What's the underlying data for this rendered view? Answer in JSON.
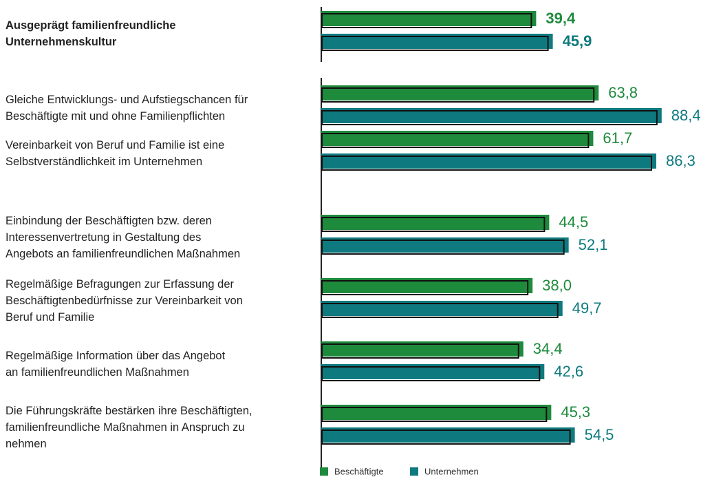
{
  "chart_data": {
    "type": "bar",
    "orientation": "horizontal",
    "categories": [
      "Ausgeprägt familienfreundliche\nUnternehmenskultur",
      "Gleiche Entwicklungs- und Aufstiegschancen für\nBeschäftigte mit und ohne Familienpflichten",
      "Vereinbarkeit von Beruf und Familie ist eine\nSelbstverständlichkeit im Unternehmen",
      "Einbindung der Beschäftigten bzw. deren\nInteressenvertretung in Gestaltung des\nAngebots an familienfreundlichen Maßnahmen",
      "Regelmäßige Befragungen zur Erfassung der\nBeschäftigtenbedürfnisse zur Vereinbarkeit von\nBeruf und Familie",
      "Regelmäßige Information über das Angebot\nan familienfreundlichen Maßnahmen",
      "Die Führungskräfte bestärken ihre Beschäftigten,\nfamilienfreundliche Maßnahmen in Anspruch zu\nnehmen"
    ],
    "series": [
      {
        "name": "Beschäftigte",
        "color": "#1e8a3c",
        "values": [
          39.4,
          63.8,
          61.7,
          44.5,
          38.0,
          34.4,
          45.3
        ],
        "value_labels": [
          "39,4",
          "63,8",
          "61,7",
          "44,5",
          "38,0",
          "34,4",
          "45,3"
        ]
      },
      {
        "name": "Unternehmen",
        "color": "#0e7a7f",
        "values": [
          45.9,
          88.4,
          86.3,
          52.1,
          49.7,
          42.6,
          54.5
        ],
        "value_labels": [
          "45,9",
          "88,4",
          "86,3",
          "52,1",
          "49,7",
          "42,6",
          "54,5"
        ]
      }
    ],
    "xlim": [
      -44.5,
      100
    ]
  }
}
